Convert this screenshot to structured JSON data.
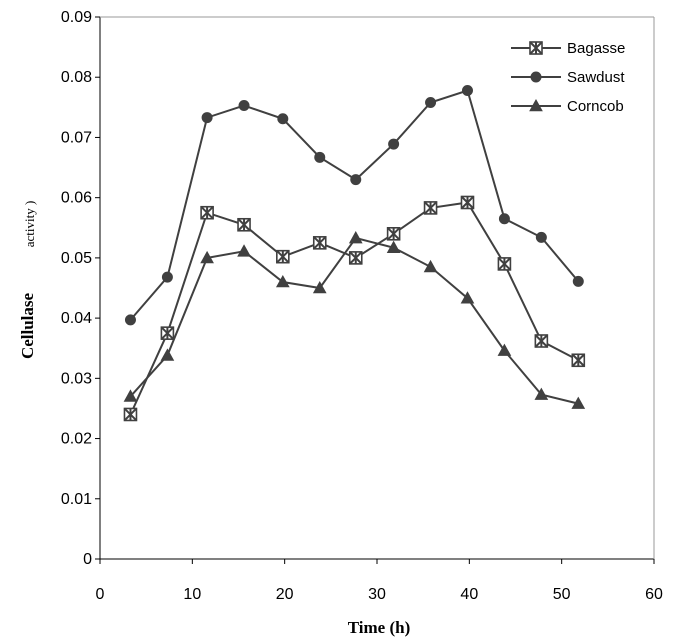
{
  "chart_data": {
    "type": "line",
    "title": "",
    "xlabel": "Time (h)",
    "ylabel": "Cellulase",
    "ylabel_secondary": "activity )",
    "xlim": [
      0,
      60
    ],
    "ylim": [
      0,
      0.09
    ],
    "x_ticks": [
      "0",
      "10",
      "20",
      "30",
      "40",
      "50",
      "60"
    ],
    "y_ticks": [
      "0",
      "0.01",
      "0.02",
      "0.03",
      "0.04",
      "0.05",
      "0.06",
      "0.07",
      "0.08",
      "0.09"
    ],
    "grid": false,
    "legend_position": "top-right",
    "x": [
      3.3,
      7.3,
      11.6,
      15.6,
      19.8,
      23.8,
      27.7,
      31.8,
      35.8,
      39.8,
      43.8,
      47.8,
      51.8
    ],
    "series": [
      {
        "name": "Bagasse",
        "marker": "asterisk",
        "values": [
          0.024,
          0.0375,
          0.0575,
          0.0555,
          0.0502,
          0.0525,
          0.05,
          0.054,
          0.0583,
          0.0592,
          0.049,
          0.0362,
          0.033
        ]
      },
      {
        "name": "Sawdust",
        "marker": "circle",
        "values": [
          0.0397,
          0.0468,
          0.0733,
          0.0753,
          0.0731,
          0.0667,
          0.063,
          0.0689,
          0.0758,
          0.0778,
          0.0565,
          0.0534,
          0.0461
        ]
      },
      {
        "name": "Corncob",
        "marker": "triangle",
        "values": [
          0.027,
          0.0338,
          0.05,
          0.0511,
          0.046,
          0.045,
          0.0533,
          0.0517,
          0.0485,
          0.0433,
          0.0346,
          0.0273,
          0.0258
        ]
      }
    ]
  },
  "colors": {
    "line": "#404040",
    "axis": "#000000",
    "background": "#ffffff"
  }
}
